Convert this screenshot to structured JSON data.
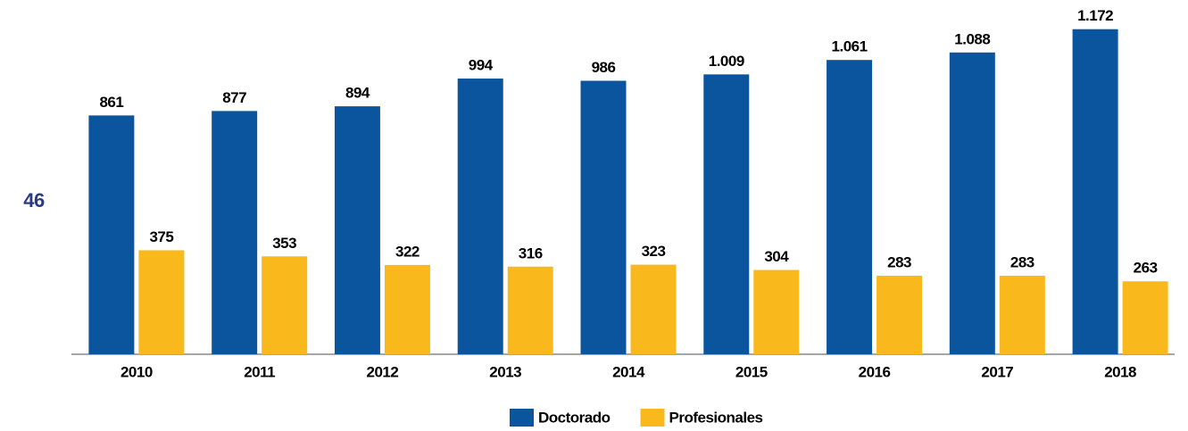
{
  "chart_data": {
    "type": "bar",
    "annotation": "46",
    "categories": [
      "2010",
      "2011",
      "2012",
      "2013",
      "2014",
      "2015",
      "2016",
      "2017",
      "2018"
    ],
    "series": [
      {
        "name": "Doctorado",
        "color": "#0b559f",
        "values": [
          861,
          877,
          894,
          994,
          986,
          1009,
          1061,
          1088,
          1172
        ],
        "value_labels": [
          "861",
          "877",
          "894",
          "994",
          "986",
          "1.009",
          "1.061",
          "1.088",
          "1.172"
        ]
      },
      {
        "name": "Profesionales",
        "color": "#f9b81b",
        "values": [
          375,
          353,
          322,
          316,
          323,
          304,
          283,
          283,
          263
        ]
      }
    ],
    "ylim": [
      0,
      1200
    ],
    "legend": "bottom"
  }
}
